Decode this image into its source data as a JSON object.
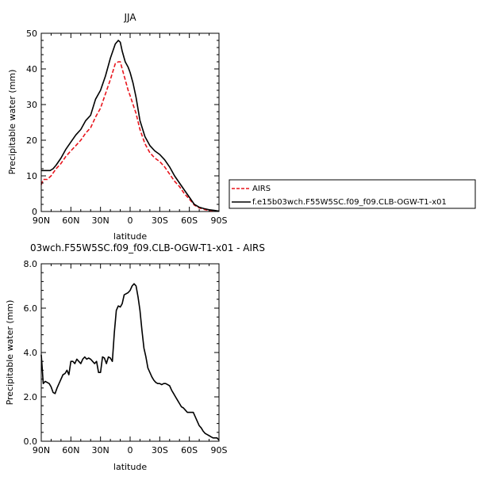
{
  "chart_data": [
    {
      "type": "line",
      "title": "JJA",
      "xlabel": "latitude",
      "ylabel": "Precipitable water (mm)",
      "xlim": [
        -90,
        90
      ],
      "ylim": [
        0,
        50
      ],
      "x_ticks": [
        -90,
        -60,
        -30,
        0,
        30,
        60,
        90
      ],
      "x_tick_labels": [
        "90N",
        "60N",
        "30N",
        "0",
        "30S",
        "60S",
        "90S"
      ],
      "y_ticks": [
        0,
        10,
        20,
        30,
        40,
        50
      ],
      "y_tick_labels": [
        "0",
        "10",
        "20",
        "30",
        "40",
        "50"
      ],
      "legend": "right",
      "series": [
        {
          "name": "AIRS",
          "color": "#e8141c",
          "dash": "dashed",
          "x": [
            -90,
            -88,
            -84,
            -80,
            -75,
            -70,
            -65,
            -60,
            -55,
            -50,
            -45,
            -40,
            -35,
            -30,
            -25,
            -20,
            -15,
            -12,
            -10,
            -8,
            -5,
            -2,
            0,
            3,
            6,
            10,
            15,
            20,
            25,
            30,
            35,
            40,
            45,
            50,
            55,
            60,
            65,
            70,
            75,
            80,
            85,
            90
          ],
          "y": [
            7.5,
            9,
            9,
            10,
            12,
            13.5,
            15.5,
            17,
            18.5,
            20,
            22,
            23.5,
            26.5,
            29,
            33,
            37,
            41.5,
            42,
            42,
            40,
            37,
            34,
            32.5,
            30,
            27.5,
            23,
            19,
            16.5,
            15,
            14,
            12.5,
            10.5,
            8.5,
            7,
            5,
            3.5,
            1.8,
            1,
            0.6,
            0.3,
            0.2,
            0.1
          ]
        },
        {
          "name": "f.e15b03wch.F55W5SC.f09_f09.CLB-OGW-T1-x01",
          "color": "#000000",
          "dash": "solid",
          "x": [
            -90,
            -87,
            -84,
            -81,
            -78,
            -75,
            -70,
            -65,
            -60,
            -55,
            -50,
            -45,
            -40,
            -35,
            -30,
            -25,
            -20,
            -15,
            -12,
            -10,
            -8,
            -5,
            -2,
            0,
            3,
            6,
            10,
            15,
            20,
            25,
            30,
            35,
            40,
            45,
            50,
            55,
            60,
            65,
            70,
            75,
            80,
            85,
            90
          ],
          "y": [
            11.5,
            11.5,
            11.5,
            11.5,
            12,
            13,
            15,
            17.5,
            19.5,
            21.5,
            23,
            25.5,
            27,
            31.5,
            34,
            38,
            43,
            47,
            48,
            47.5,
            45,
            42,
            40.5,
            39,
            36,
            32,
            25.5,
            21,
            18.5,
            17,
            16,
            14.5,
            12.5,
            10,
            8,
            6,
            4,
            2,
            1.2,
            0.8,
            0.5,
            0.3,
            0.1
          ]
        }
      ]
    },
    {
      "type": "line",
      "title": "03wch.F55W5SC.f09_f09.CLB-OGW-T1-x01 - AIRS",
      "xlabel": "latitude",
      "ylabel": "Precipitable water (mm)",
      "xlim": [
        -90,
        90
      ],
      "ylim": [
        0,
        8
      ],
      "x_ticks": [
        -90,
        -60,
        -30,
        0,
        30,
        60,
        90
      ],
      "x_tick_labels": [
        "90N",
        "60N",
        "30N",
        "0",
        "30S",
        "60S",
        "90S"
      ],
      "y_ticks": [
        0,
        2,
        4,
        6,
        8
      ],
      "y_tick_labels": [
        "0.0",
        "2.0",
        "4.0",
        "6.0",
        "8.0"
      ],
      "series": [
        {
          "color": "#000000",
          "dash": "solid",
          "x": [
            -90,
            -89,
            -88,
            -86,
            -84,
            -82,
            -80,
            -78,
            -76,
            -74,
            -72,
            -70,
            -68,
            -66,
            -64,
            -62,
            -60,
            -58,
            -56,
            -54,
            -52,
            -50,
            -48,
            -46,
            -44,
            -42,
            -40,
            -38,
            -36,
            -34,
            -32,
            -30,
            -28,
            -26,
            -24,
            -22,
            -20,
            -18,
            -16,
            -14,
            -12,
            -10,
            -8,
            -6,
            -4,
            -2,
            0,
            2,
            4,
            6,
            8,
            10,
            12,
            14,
            16,
            18,
            20,
            22,
            24,
            26,
            28,
            30,
            32,
            34,
            36,
            38,
            40,
            42,
            44,
            46,
            48,
            50,
            52,
            54,
            56,
            58,
            60,
            62,
            64,
            66,
            68,
            70,
            72,
            74,
            76,
            78,
            80,
            82,
            84,
            86,
            88,
            90
          ],
          "y": [
            3.9,
            3.3,
            2.6,
            2.7,
            2.65,
            2.6,
            2.45,
            2.2,
            2.15,
            2.4,
            2.6,
            2.8,
            3.0,
            3.05,
            3.2,
            3.0,
            3.6,
            3.6,
            3.5,
            3.7,
            3.6,
            3.5,
            3.7,
            3.8,
            3.7,
            3.75,
            3.7,
            3.6,
            3.5,
            3.6,
            3.1,
            3.1,
            3.8,
            3.75,
            3.5,
            3.8,
            3.75,
            3.6,
            4.9,
            5.9,
            6.1,
            6.05,
            6.2,
            6.6,
            6.65,
            6.7,
            6.8,
            7.0,
            7.1,
            7.0,
            6.5,
            5.9,
            5.0,
            4.2,
            3.8,
            3.3,
            3.1,
            2.9,
            2.75,
            2.65,
            2.6,
            2.6,
            2.55,
            2.6,
            2.6,
            2.55,
            2.5,
            2.3,
            2.15,
            2.0,
            1.85,
            1.7,
            1.55,
            1.5,
            1.4,
            1.3,
            1.3,
            1.3,
            1.3,
            1.1,
            0.9,
            0.7,
            0.6,
            0.45,
            0.35,
            0.3,
            0.25,
            0.2,
            0.15,
            0.15,
            0.15,
            0.05
          ]
        }
      ]
    }
  ]
}
